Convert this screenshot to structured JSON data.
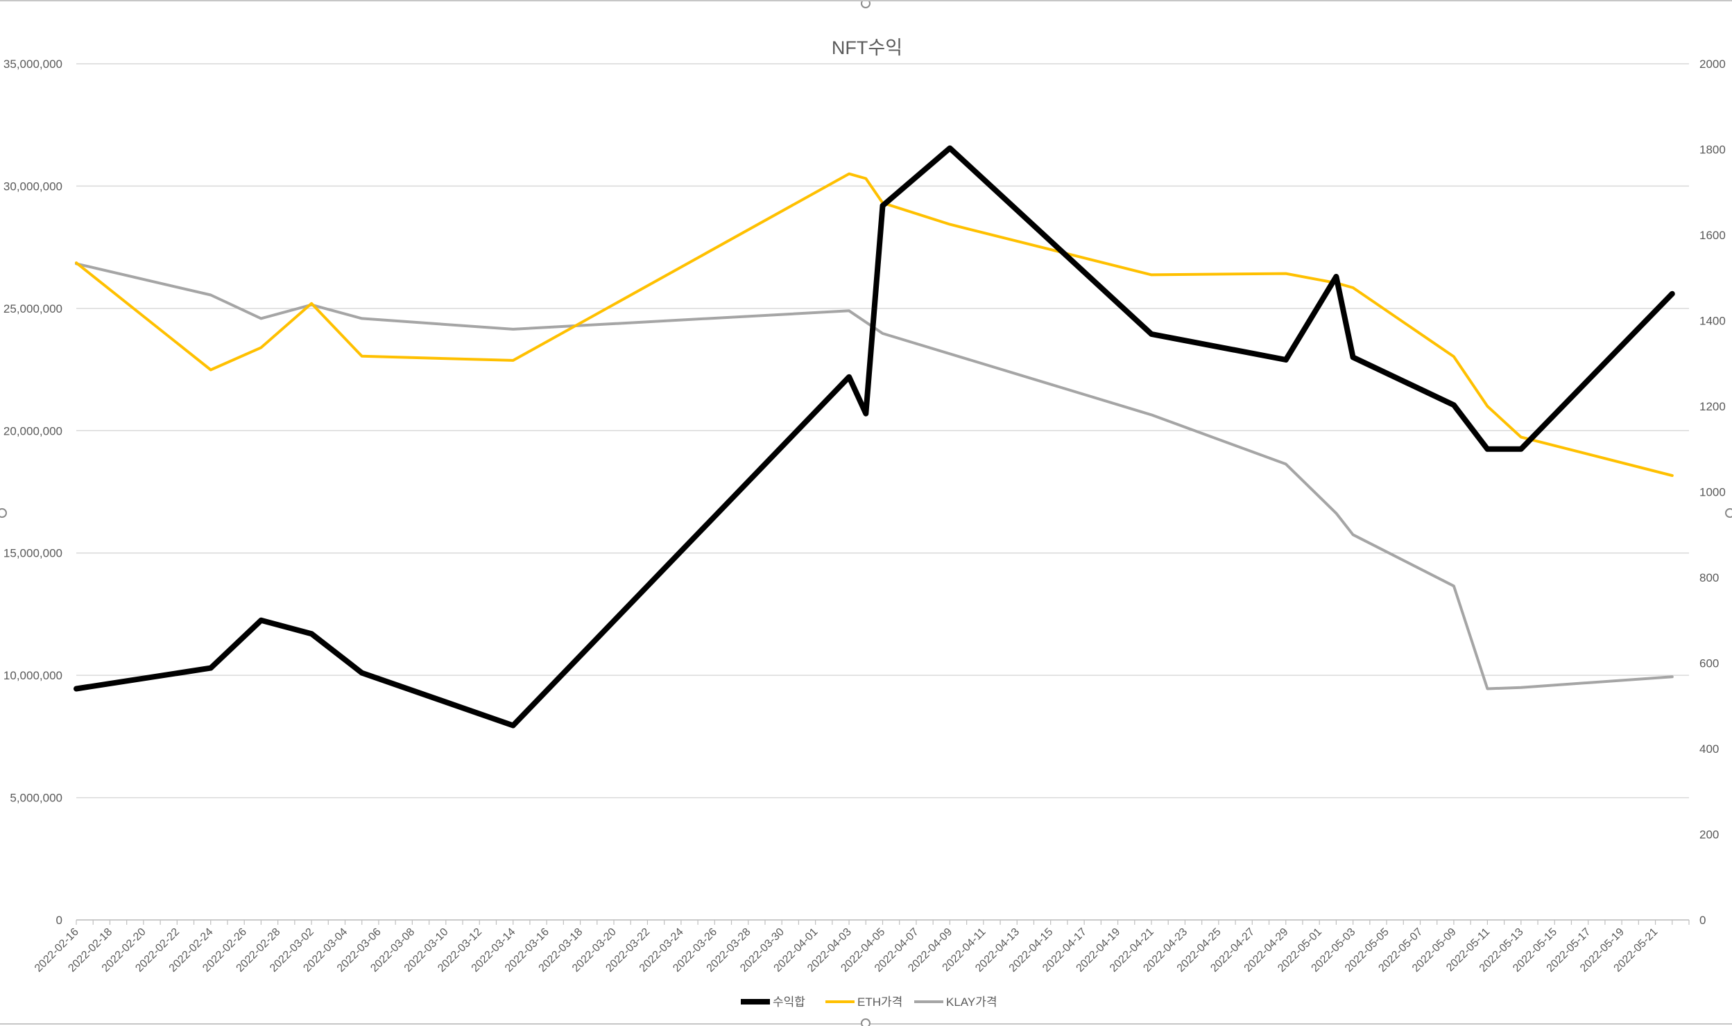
{
  "chart_data": {
    "type": "line",
    "title": "NFT수익",
    "xlabel": "",
    "ylabel": "",
    "x_start": "2022-02-16",
    "x_end": "2022-05-23",
    "x_tick_labels": [
      "2022-02-16",
      "2022-02-18",
      "2022-02-20",
      "2022-02-22",
      "2022-02-24",
      "2022-02-26",
      "2022-02-28",
      "2022-03-02",
      "2022-03-04",
      "2022-03-06",
      "2022-03-08",
      "2022-03-10",
      "2022-03-12",
      "2022-03-14",
      "2022-03-16",
      "2022-03-18",
      "2022-03-20",
      "2022-03-22",
      "2022-03-24",
      "2022-03-26",
      "2022-03-28",
      "2022-03-30",
      "2022-04-01",
      "2022-04-03",
      "2022-04-05",
      "2022-04-07",
      "2022-04-09",
      "2022-04-11",
      "2022-04-13",
      "2022-04-15",
      "2022-04-17",
      "2022-04-19",
      "2022-04-21",
      "2022-04-23",
      "2022-04-25",
      "2022-04-27",
      "2022-04-29",
      "2022-05-01",
      "2022-05-03",
      "2022-05-05",
      "2022-05-07",
      "2022-05-09",
      "2022-05-11",
      "2022-05-13",
      "2022-05-15",
      "2022-05-17",
      "2022-05-19",
      "2022-05-21"
    ],
    "y_left": {
      "ylim": [
        0,
        35000000
      ],
      "tick_values": [
        0,
        5000000,
        10000000,
        15000000,
        20000000,
        25000000,
        30000000,
        35000000
      ],
      "tick_labels": [
        "0",
        "5,000,000",
        "10,000,000",
        "15,000,000",
        "20,000,000",
        "25,000,000",
        "30,000,000",
        "35,000,000"
      ]
    },
    "y_right": {
      "ylim": [
        0,
        2000
      ],
      "tick_values": [
        0,
        200,
        400,
        600,
        800,
        1000,
        1200,
        1400,
        1600,
        1800,
        2000
      ],
      "tick_labels": [
        "0",
        "200",
        "400",
        "600",
        "800",
        "1000",
        "1200",
        "1400",
        "1600",
        "1800",
        "2000"
      ]
    },
    "grid": true,
    "legend_position": "bottom",
    "series": [
      {
        "name": "수익합",
        "axis": "left",
        "color": "#000000",
        "line_width": "thick",
        "points": [
          [
            "2022-02-16",
            9450000
          ],
          [
            "2022-02-24",
            10300000
          ],
          [
            "2022-02-27",
            12250000
          ],
          [
            "2022-03-02",
            11700000
          ],
          [
            "2022-03-05",
            10100000
          ],
          [
            "2022-03-14",
            7950000
          ],
          [
            "2022-04-03",
            22200000
          ],
          [
            "2022-04-04",
            20700000
          ],
          [
            "2022-04-05",
            29200000
          ],
          [
            "2022-04-09",
            31550000
          ],
          [
            "2022-04-21",
            23950000
          ],
          [
            "2022-04-29",
            22900000
          ],
          [
            "2022-05-02",
            26300000
          ],
          [
            "2022-05-03",
            23000000
          ],
          [
            "2022-05-09",
            21050000
          ],
          [
            "2022-05-11",
            19250000
          ],
          [
            "2022-05-13",
            19250000
          ],
          [
            "2022-05-22",
            25600000
          ]
        ]
      },
      {
        "name": "ETH가격",
        "axis": "right",
        "color": "#ffc000",
        "line_width": "medium",
        "points": [
          [
            "2022-02-16",
            1535
          ],
          [
            "2022-02-24",
            1285
          ],
          [
            "2022-02-27",
            1337
          ],
          [
            "2022-03-02",
            1440
          ],
          [
            "2022-03-05",
            1317
          ],
          [
            "2022-03-14",
            1307
          ],
          [
            "2022-04-03",
            1743
          ],
          [
            "2022-04-04",
            1732
          ],
          [
            "2022-04-05",
            1675
          ],
          [
            "2022-04-09",
            1625
          ],
          [
            "2022-04-21",
            1507
          ],
          [
            "2022-04-29",
            1510
          ],
          [
            "2022-05-02",
            1488
          ],
          [
            "2022-05-03",
            1477
          ],
          [
            "2022-05-09",
            1316
          ],
          [
            "2022-05-11",
            1200
          ],
          [
            "2022-05-13",
            1128
          ],
          [
            "2022-05-22",
            1038
          ]
        ]
      },
      {
        "name": "KLAY가격",
        "axis": "right",
        "color": "#a5a5a5",
        "line_width": "medium",
        "points": [
          [
            "2022-02-16",
            1533
          ],
          [
            "2022-02-24",
            1460
          ],
          [
            "2022-02-27",
            1405
          ],
          [
            "2022-03-02",
            1437
          ],
          [
            "2022-03-05",
            1405
          ],
          [
            "2022-03-14",
            1380
          ],
          [
            "2022-04-03",
            1423
          ],
          [
            "2022-04-05",
            1370
          ],
          [
            "2022-04-21",
            1180
          ],
          [
            "2022-04-29",
            1065
          ],
          [
            "2022-05-02",
            950
          ],
          [
            "2022-05-03",
            900
          ],
          [
            "2022-05-09",
            780
          ],
          [
            "2022-05-11",
            540
          ],
          [
            "2022-05-13",
            543
          ],
          [
            "2022-05-22",
            568
          ]
        ]
      }
    ]
  }
}
